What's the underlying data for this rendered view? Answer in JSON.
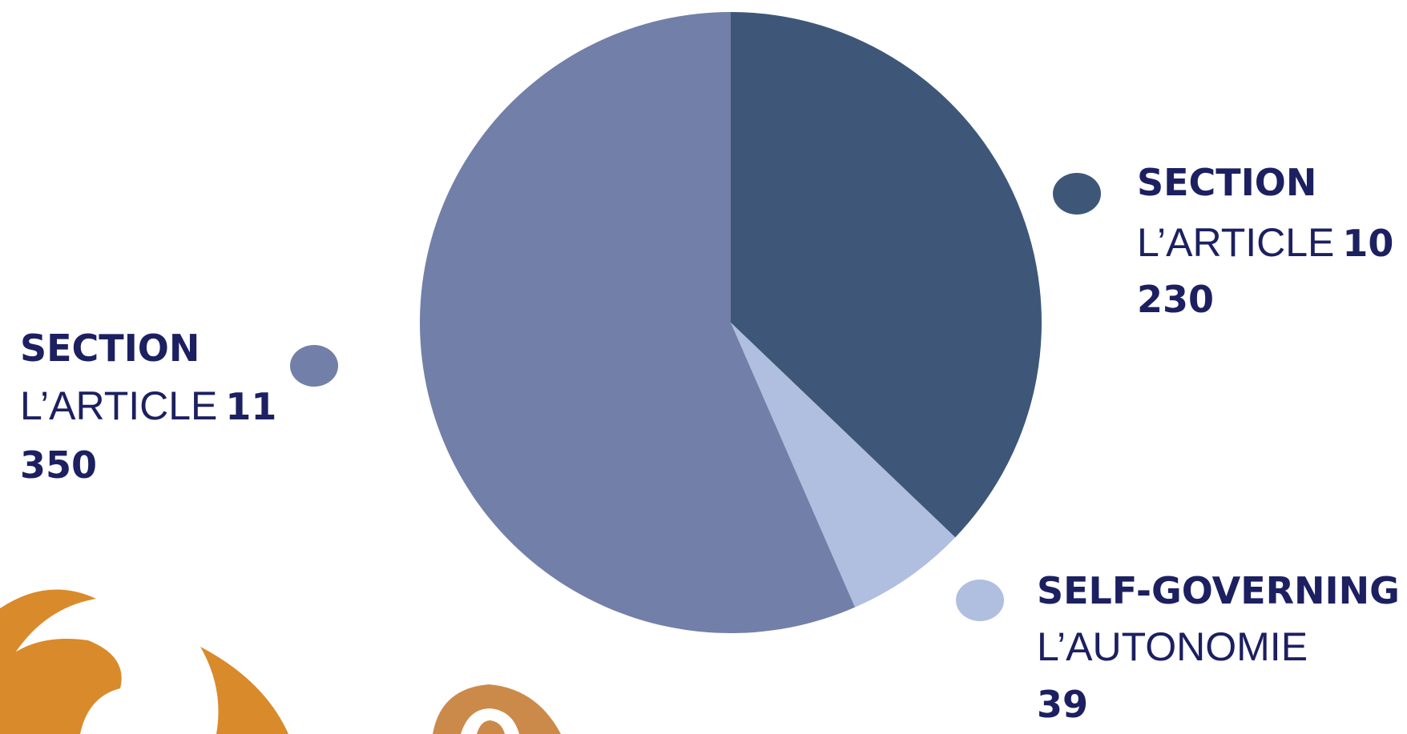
{
  "chart_data": {
    "type": "pie",
    "slices": [
      {
        "label": "SECTION",
        "label_fr": "L’ARTICLE",
        "number": "10",
        "value": 230,
        "color": "#3e5779"
      },
      {
        "label": "SELF-GOVERNING",
        "label_fr": "L’AUTONOMIE",
        "value": 39,
        "color": "#b0bfdf"
      },
      {
        "label": "SECTION",
        "label_fr": "L’ARTICLE",
        "number": "11",
        "value": 350,
        "color": "#727fa8"
      }
    ]
  }
}
